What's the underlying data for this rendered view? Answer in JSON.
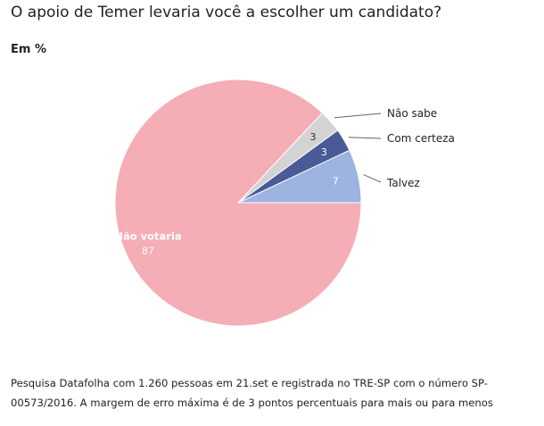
{
  "title": "O apoio de Temer levaria você a escolher um candidato?",
  "subtitle": "Em %",
  "note": "Pesquisa Datafolha com 1.260 pessoas em 21.set e registrada no TRE-SP com o número SP-00573/2016. A margem de erro máxima é de 3 pontos percentuais para mais ou para menos",
  "chart_data": {
    "type": "pie",
    "title": "O apoio de Temer levaria você a escolher um candidato?",
    "subtitle": "Em %",
    "start": "3 o'clock, counter-clockwise",
    "slices": [
      {
        "label": "Talvez",
        "value": 7,
        "color": "#9db3e0",
        "label_style": "leader-line"
      },
      {
        "label": "Com certeza",
        "value": 3,
        "color": "#495a96",
        "label_style": "leader-line"
      },
      {
        "label": "Não sabe",
        "value": 3,
        "color": "#d3d3d3",
        "label_style": "leader-line"
      },
      {
        "label": "Não votaria",
        "value": 87,
        "color": "#f5adb6",
        "label_style": "inside"
      }
    ]
  }
}
